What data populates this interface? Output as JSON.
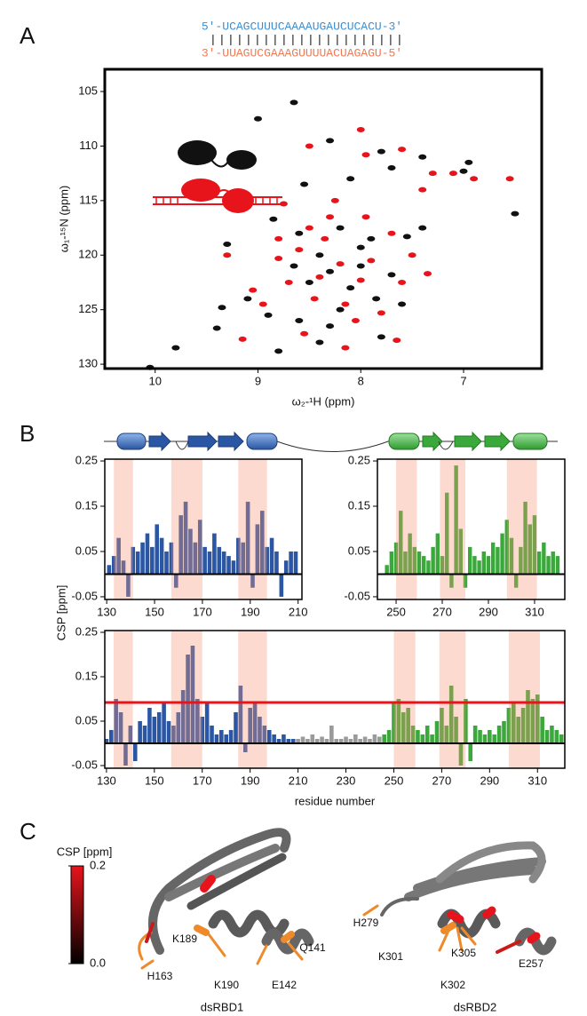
{
  "panel_labels": [
    "A",
    "B",
    "C"
  ],
  "rna": {
    "top": "5′-UCAGCUUUCAAAAUGAUCUCACU-3′",
    "pairs": "||||||||||||||||||||||",
    "bottom": "3′-UUAGUCGAAAGUUUUACUAGAGU-5′"
  },
  "panel_b": {
    "y_label": "CSP [ppm]"
  },
  "chart_data": [
    {
      "type": "scatter",
      "xlabel": "ω₂-¹H (ppm)",
      "ylabel": "ω₁-¹⁵N (ppm)",
      "xlim": [
        10.49,
        6.24
      ],
      "ylim": [
        130.4,
        102.96
      ],
      "xticks": [
        10,
        9,
        8,
        7
      ],
      "yticks": [
        105,
        110,
        115,
        120,
        125,
        130
      ],
      "series": [
        {
          "color": "#111111",
          "x": [
            8.65,
            9.0,
            8.3,
            7.8,
            7.4,
            6.95,
            7.7,
            8.1,
            8.55,
            7.0,
            6.5,
            8.85,
            9.3,
            8.6,
            8.2,
            7.9,
            7.55,
            8.4,
            8.0,
            8.3,
            7.7,
            8.5,
            8.1,
            7.85,
            9.35,
            9.1,
            8.9,
            8.6,
            8.3,
            9.8,
            10.05,
            8.4,
            8.8,
            7.8,
            9.4,
            8.0,
            7.4,
            8.65,
            7.6,
            8.2
          ],
          "y": [
            106,
            107.5,
            109.5,
            110.5,
            111,
            111.5,
            112,
            113,
            113.5,
            112.3,
            116.2,
            116.7,
            119,
            118,
            117.5,
            118.5,
            118.3,
            120,
            121,
            121.5,
            121.8,
            122.5,
            123,
            124,
            124.8,
            124,
            125.5,
            126,
            126.5,
            128.5,
            130.3,
            128,
            128.8,
            127.5,
            126.7,
            119.3,
            117.5,
            121,
            124.5,
            125
          ]
        },
        {
          "color": "#e8141c",
          "x": [
            8.0,
            7.95,
            7.6,
            7.3,
            6.9,
            7.1,
            6.55,
            8.5,
            8.25,
            8.5,
            7.95,
            8.35,
            8.6,
            8.8,
            9.3,
            8.2,
            7.9,
            8.4,
            8.0,
            7.6,
            7.5,
            8.15,
            8.45,
            7.8,
            9.05,
            9.15,
            8.55,
            8.15,
            7.65,
            8.95,
            8.7,
            7.7,
            8.3,
            8.75,
            8.05,
            7.35,
            7.4,
            8.8
          ],
          "y": [
            108.5,
            110.8,
            110.3,
            112.5,
            113,
            112.5,
            113,
            110,
            115,
            117.5,
            116.5,
            118.5,
            119.5,
            120.3,
            120,
            120.8,
            120.5,
            122,
            122.3,
            122.5,
            120,
            124.5,
            124,
            125.3,
            123.2,
            127.7,
            127.2,
            128.5,
            127.8,
            124.5,
            122.5,
            118,
            116.5,
            115.3,
            126,
            121.7,
            114,
            118.5
          ]
        }
      ]
    },
    {
      "type": "bar",
      "xlim": [
        129.2,
        211.6
      ],
      "ylim": [
        -0.056,
        0.254
      ],
      "xticks": [
        130,
        150,
        170,
        190,
        210
      ],
      "yticks": [
        -0.05,
        0.05,
        0.15,
        0.25
      ],
      "highlight_ranges": [
        [
          133,
          141
        ],
        [
          157,
          170
        ],
        [
          185,
          197
        ]
      ],
      "series": [
        {
          "color": "#2a56a3",
          "x": [
            131,
            133,
            135,
            137,
            139,
            141,
            143,
            145,
            147,
            149,
            151,
            153,
            155,
            157,
            159,
            161,
            163,
            165,
            167,
            169,
            171,
            173,
            175,
            177,
            179,
            181,
            183,
            185,
            187,
            189,
            191,
            193,
            195,
            197,
            199,
            201,
            203,
            205,
            207,
            209
          ],
          "values": [
            0.02,
            0.04,
            0.08,
            0.03,
            -0.05,
            0.06,
            0.05,
            0.07,
            0.09,
            0.06,
            0.11,
            0.08,
            0.05,
            0.07,
            -0.03,
            0.13,
            0.16,
            0.1,
            0.07,
            0.12,
            0.06,
            0.05,
            0.09,
            0.06,
            0.05,
            0.04,
            0.03,
            0.08,
            0.07,
            0.16,
            -0.03,
            0.11,
            0.14,
            0.06,
            0.08,
            0.05,
            -0.05,
            0.03,
            0.05,
            0.05
          ]
        }
      ]
    },
    {
      "type": "bar",
      "xlim": [
        241.9,
        323.1
      ],
      "ylim": [
        -0.056,
        0.254
      ],
      "xticks": [
        250,
        270,
        290,
        310
      ],
      "yticks": [
        -0.05,
        0.05,
        0.15,
        0.25
      ],
      "highlight_ranges": [
        [
          250,
          259
        ],
        [
          269,
          280
        ],
        [
          298,
          311
        ]
      ],
      "series": [
        {
          "color": "#3aa83a",
          "x": [
            246,
            248,
            250,
            252,
            254,
            256,
            258,
            260,
            262,
            264,
            266,
            268,
            270,
            272,
            274,
            276,
            278,
            280,
            282,
            284,
            286,
            288,
            290,
            292,
            294,
            296,
            298,
            300,
            302,
            304,
            306,
            308,
            310,
            312,
            314,
            316,
            318,
            320
          ],
          "values": [
            0.02,
            0.05,
            0.07,
            0.14,
            0.05,
            0.09,
            0.06,
            0.05,
            0.04,
            0.03,
            0.06,
            0.09,
            0.04,
            0.18,
            -0.03,
            0.24,
            0.1,
            -0.03,
            0.06,
            0.04,
            0.03,
            0.05,
            0.04,
            0.07,
            0.06,
            0.09,
            0.12,
            0.08,
            -0.03,
            0.06,
            0.16,
            0.11,
            0.13,
            0.05,
            0.07,
            0.04,
            0.05,
            0.04
          ]
        }
      ]
    },
    {
      "type": "bar",
      "xlabel": "residue number",
      "xlim": [
        129.3,
        321.4
      ],
      "ylim": [
        -0.056,
        0.254
      ],
      "xticks": [
        130,
        150,
        170,
        190,
        210,
        230,
        250,
        270,
        290,
        310
      ],
      "yticks": [
        -0.05,
        0.05,
        0.15,
        0.25
      ],
      "highlight_ranges": [
        [
          133,
          141
        ],
        [
          157,
          170
        ],
        [
          185,
          197
        ],
        [
          250,
          259
        ],
        [
          269,
          280
        ],
        [
          298,
          311
        ]
      ],
      "threshold": 0.092,
      "threshold_color": "#e8141c",
      "series": [
        {
          "color": "#2a56a3",
          "x": [
            130,
            132,
            134,
            136,
            138,
            140,
            142,
            144,
            146,
            148,
            150,
            152,
            154,
            156,
            158,
            160,
            162,
            164,
            166,
            168,
            170,
            172,
            174,
            176,
            178,
            180,
            182,
            184,
            186,
            188,
            190,
            192,
            194,
            196,
            198,
            200,
            202,
            204,
            206,
            208
          ],
          "values": [
            0.01,
            0.03,
            0.1,
            0.07,
            -0.05,
            0.04,
            -0.04,
            0.05,
            0.04,
            0.08,
            0.06,
            0.07,
            0.09,
            0.05,
            0.04,
            0.07,
            0.12,
            0.2,
            0.22,
            0.1,
            0.06,
            0.09,
            0.04,
            0.02,
            0.03,
            0.02,
            0.03,
            0.07,
            0.13,
            -0.02,
            0.08,
            0.09,
            0.06,
            0.04,
            0.03,
            0.02,
            0.01,
            0.02,
            0.01,
            0.01
          ]
        },
        {
          "color": "#9a9a9a",
          "x": [
            210,
            212,
            214,
            216,
            218,
            220,
            222,
            224,
            226,
            228,
            230,
            232,
            234,
            236,
            238,
            240,
            242,
            244
          ],
          "values": [
            0.01,
            0.015,
            0.01,
            0.02,
            0.01,
            0.015,
            0.01,
            0.04,
            0.01,
            0.01,
            0.015,
            0.01,
            0.02,
            0.01,
            0.015,
            0.01,
            0.02,
            0.015
          ]
        },
        {
          "color": "#3aa83a",
          "x": [
            246,
            248,
            250,
            252,
            254,
            256,
            258,
            260,
            262,
            264,
            266,
            268,
            270,
            272,
            274,
            276,
            278,
            280,
            282,
            284,
            286,
            288,
            290,
            292,
            294,
            296,
            298,
            300,
            302,
            304,
            306,
            308,
            310,
            312,
            314,
            316,
            318,
            320
          ],
          "values": [
            0.02,
            0.03,
            0.09,
            0.1,
            0.07,
            0.08,
            0.04,
            0.03,
            0.02,
            0.04,
            0.02,
            0.05,
            0.08,
            0.04,
            0.13,
            0.06,
            -0.05,
            0.1,
            -0.04,
            0.04,
            0.03,
            0.02,
            0.03,
            0.02,
            0.04,
            0.05,
            0.08,
            0.09,
            0.06,
            0.08,
            0.12,
            0.1,
            0.11,
            0.06,
            0.03,
            0.04,
            0.03,
            0.02
          ]
        }
      ]
    }
  ],
  "colorbar": {
    "title": "CSP [ppm]",
    "lim": [
      0,
      0.2
    ],
    "ticks": [
      0.2,
      {
        "value": 0,
        "label": "0.0"
      }
    ]
  },
  "structures": {
    "dsRBD1": {
      "name": "dsRBD1",
      "residues": [
        "H163",
        "K189",
        "K190",
        "E142",
        "Q141"
      ]
    },
    "dsRBD2": {
      "name": "dsRBD2",
      "residues": [
        "H279",
        "K301",
        "K305",
        "K302",
        "E257"
      ]
    }
  }
}
